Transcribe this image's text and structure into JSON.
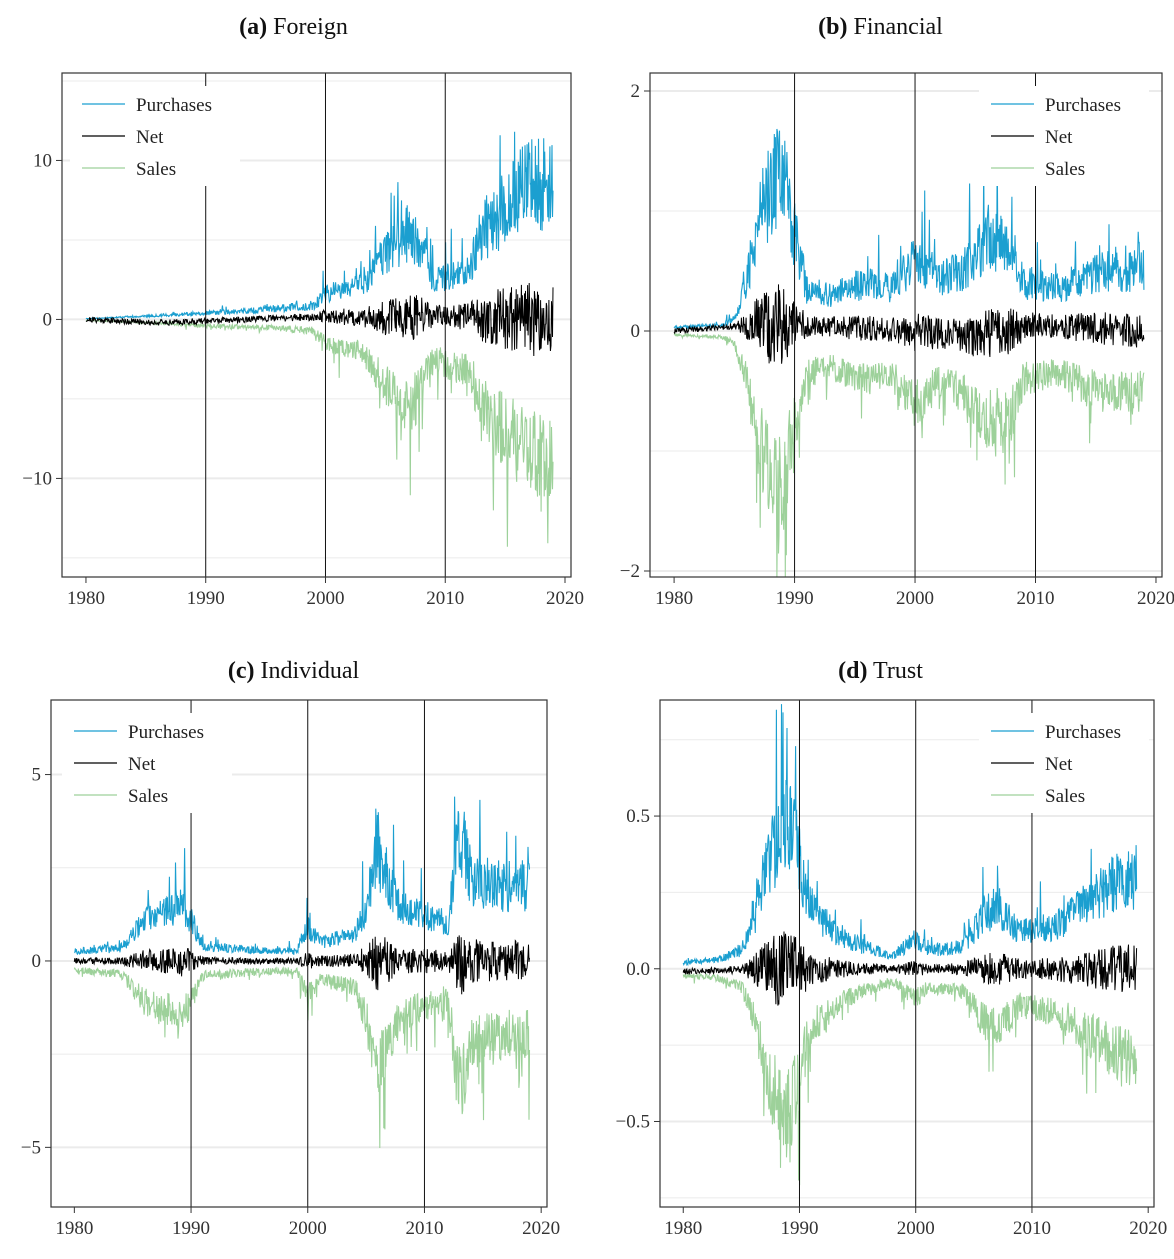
{
  "colors": {
    "purchases": "#1b9fd0",
    "net": "#000000",
    "sales": "#9dd19a",
    "grid": "#ebebeb",
    "frame": "#333333"
  },
  "legend_labels": [
    "Purchases",
    "Net",
    "Sales"
  ],
  "panels": [
    {
      "tag": "(a)",
      "name": "Foreign"
    },
    {
      "tag": "(b)",
      "name": "Financial"
    },
    {
      "tag": "(c)",
      "name": "Individual"
    },
    {
      "tag": "(d)",
      "name": "Trust"
    }
  ],
  "chart_data": [
    {
      "type": "line",
      "title": "(a) Foreign",
      "x_range": [
        1980,
        2019
      ],
      "xlim": [
        1978,
        2020.5
      ],
      "ylim": [
        -16.2,
        15.5
      ],
      "x_ticks": [
        1980,
        1990,
        2000,
        2010,
        2020
      ],
      "y_ticks": [
        -10,
        0,
        10
      ],
      "y_tick_labels": [
        "−10",
        "0",
        "10"
      ],
      "vlines": [
        1990,
        2000,
        2010
      ],
      "legend_position": "top-left",
      "grid": true,
      "series": [
        {
          "name": "Purchases",
          "approx_level": [
            [
              1980,
              0.05
            ],
            [
              1985,
              0.2
            ],
            [
              1990,
              0.4
            ],
            [
              1995,
              0.6
            ],
            [
              1999,
              0.9
            ],
            [
              2000,
              1.6
            ],
            [
              2003,
              2.2
            ],
            [
              2005,
              4.0
            ],
            [
              2007,
              5.5
            ],
            [
              2008,
              4.5
            ],
            [
              2009,
              2.5
            ],
            [
              2011,
              3.0
            ],
            [
              2012,
              3.2
            ],
            [
              2013,
              5.5
            ],
            [
              2015,
              7.0
            ],
            [
              2017,
              8.5
            ],
            [
              2019,
              8.5
            ]
          ]
        },
        {
          "name": "Net",
          "approx_level": [
            [
              1980,
              0
            ],
            [
              1986,
              -0.2
            ],
            [
              1990,
              -0.1
            ],
            [
              2000,
              0.2
            ],
            [
              2005,
              0.1
            ],
            [
              2010,
              0.2
            ],
            [
              2019,
              0.0
            ]
          ]
        },
        {
          "name": "Sales",
          "approx_level": [
            [
              1980,
              -0.05
            ],
            [
              1985,
              -0.2
            ],
            [
              1990,
              -0.4
            ],
            [
              1995,
              -0.5
            ],
            [
              1999,
              -0.7
            ],
            [
              2000,
              -1.5
            ],
            [
              2003,
              -2.0
            ],
            [
              2005,
              -4.0
            ],
            [
              2007,
              -5.5
            ],
            [
              2008,
              -4.5
            ],
            [
              2009,
              -2.5
            ],
            [
              2011,
              -3.0
            ],
            [
              2012,
              -3.2
            ],
            [
              2013,
              -5.5
            ],
            [
              2015,
              -7.0
            ],
            [
              2017,
              -8.5
            ],
            [
              2019,
              -8.5
            ]
          ]
        }
      ]
    },
    {
      "type": "line",
      "title": "(b) Financial",
      "x_range": [
        1980,
        2019
      ],
      "xlim": [
        1978,
        2020.5
      ],
      "ylim": [
        -2.05,
        2.15
      ],
      "x_ticks": [
        1980,
        1990,
        2000,
        2010,
        2020
      ],
      "y_ticks": [
        -2,
        0,
        2
      ],
      "y_tick_labels": [
        "−2",
        "0",
        "2"
      ],
      "vlines": [
        1990,
        2000,
        2010
      ],
      "legend_position": "top-right",
      "grid": true,
      "series": [
        {
          "name": "Purchases",
          "approx_level": [
            [
              1980,
              0.03
            ],
            [
              1984,
              0.05
            ],
            [
              1985,
              0.1
            ],
            [
              1986,
              0.4
            ],
            [
              1987,
              0.9
            ],
            [
              1988,
              1.2
            ],
            [
              1989,
              1.3
            ],
            [
              1990,
              0.8
            ],
            [
              1991,
              0.35
            ],
            [
              1993,
              0.3
            ],
            [
              1996,
              0.4
            ],
            [
              1998,
              0.35
            ],
            [
              2000,
              0.6
            ],
            [
              2002,
              0.45
            ],
            [
              2004,
              0.5
            ],
            [
              2006,
              0.75
            ],
            [
              2008,
              0.7
            ],
            [
              2009,
              0.4
            ],
            [
              2012,
              0.35
            ],
            [
              2014,
              0.45
            ],
            [
              2016,
              0.5
            ],
            [
              2019,
              0.5
            ]
          ]
        },
        {
          "name": "Net",
          "approx_level": [
            [
              1980,
              0
            ],
            [
              1986,
              0.05
            ],
            [
              1990,
              0.05
            ],
            [
              2000,
              0
            ],
            [
              2005,
              -0.05
            ],
            [
              2010,
              0.05
            ],
            [
              2019,
              0
            ]
          ]
        },
        {
          "name": "Sales",
          "approx_level": [
            [
              1980,
              -0.03
            ],
            [
              1984,
              -0.05
            ],
            [
              1985,
              -0.1
            ],
            [
              1986,
              -0.4
            ],
            [
              1987,
              -0.9
            ],
            [
              1988,
              -1.2
            ],
            [
              1989,
              -1.3
            ],
            [
              1990,
              -0.8
            ],
            [
              1991,
              -0.35
            ],
            [
              1993,
              -0.3
            ],
            [
              1996,
              -0.4
            ],
            [
              1998,
              -0.35
            ],
            [
              2000,
              -0.6
            ],
            [
              2002,
              -0.45
            ],
            [
              2004,
              -0.5
            ],
            [
              2006,
              -0.75
            ],
            [
              2008,
              -0.7
            ],
            [
              2009,
              -0.4
            ],
            [
              2012,
              -0.35
            ],
            [
              2014,
              -0.45
            ],
            [
              2016,
              -0.5
            ],
            [
              2019,
              -0.5
            ]
          ]
        }
      ]
    },
    {
      "type": "line",
      "title": "(c) Individual",
      "x_range": [
        1980,
        2019
      ],
      "xlim": [
        1978,
        2020.5
      ],
      "ylim": [
        -6.6,
        7.0
      ],
      "x_ticks": [
        1980,
        1990,
        2000,
        2010,
        2020
      ],
      "y_ticks": [
        -5,
        0,
        5
      ],
      "y_tick_labels": [
        "−5",
        "0",
        "5"
      ],
      "vlines": [
        1990,
        2000,
        2010
      ],
      "legend_position": "top-left",
      "grid": true,
      "series": [
        {
          "name": "Purchases",
          "approx_level": [
            [
              1980,
              0.25
            ],
            [
              1984,
              0.35
            ],
            [
              1986,
              1.1
            ],
            [
              1988,
              1.3
            ],
            [
              1989,
              1.6
            ],
            [
              1990,
              1.1
            ],
            [
              1991,
              0.4
            ],
            [
              1995,
              0.3
            ],
            [
              1999,
              0.25
            ],
            [
              2000,
              0.9
            ],
            [
              2001,
              0.5
            ],
            [
              2004,
              0.7
            ],
            [
              2005,
              1.5
            ],
            [
              2006,
              3.0
            ],
            [
              2007,
              2.0
            ],
            [
              2008,
              1.5
            ],
            [
              2010,
              1.2
            ],
            [
              2012,
              1.0
            ],
            [
              2013,
              3.5
            ],
            [
              2014,
              2.2
            ],
            [
              2016,
              2.0
            ],
            [
              2019,
              2.0
            ]
          ]
        },
        {
          "name": "Net",
          "approx_level": [
            [
              1980,
              0
            ],
            [
              1990,
              0
            ],
            [
              2000,
              0
            ],
            [
              2010,
              0
            ],
            [
              2019,
              0
            ]
          ]
        },
        {
          "name": "Sales",
          "approx_level": [
            [
              1980,
              -0.25
            ],
            [
              1984,
              -0.35
            ],
            [
              1986,
              -1.1
            ],
            [
              1988,
              -1.3
            ],
            [
              1989,
              -1.6
            ],
            [
              1990,
              -1.1
            ],
            [
              1991,
              -0.4
            ],
            [
              1995,
              -0.3
            ],
            [
              1999,
              -0.25
            ],
            [
              2000,
              -0.9
            ],
            [
              2001,
              -0.5
            ],
            [
              2004,
              -0.7
            ],
            [
              2005,
              -1.5
            ],
            [
              2006,
              -3.0
            ],
            [
              2007,
              -2.0
            ],
            [
              2008,
              -1.5
            ],
            [
              2010,
              -1.2
            ],
            [
              2012,
              -1.0
            ],
            [
              2013,
              -3.5
            ],
            [
              2014,
              -2.2
            ],
            [
              2016,
              -2.0
            ],
            [
              2019,
              -2.0
            ]
          ]
        }
      ]
    },
    {
      "type": "line",
      "title": "(d) Trust",
      "x_range": [
        1980,
        2019
      ],
      "xlim": [
        1978,
        2020.5
      ],
      "ylim": [
        -0.78,
        0.88
      ],
      "x_ticks": [
        1980,
        1990,
        2000,
        2010,
        2020
      ],
      "y_ticks": [
        -0.5,
        0,
        0.5
      ],
      "y_tick_labels": [
        "−0.5",
        "0.0",
        "0.5"
      ],
      "vlines": [
        1990,
        2000,
        2010
      ],
      "legend_position": "top-right",
      "grid": true,
      "series": [
        {
          "name": "Purchases",
          "approx_level": [
            [
              1980,
              0.02
            ],
            [
              1983,
              0.03
            ],
            [
              1985,
              0.06
            ],
            [
              1986,
              0.15
            ],
            [
              1987,
              0.3
            ],
            [
              1988,
              0.42
            ],
            [
              1989,
              0.5
            ],
            [
              1990,
              0.35
            ],
            [
              1991,
              0.2
            ],
            [
              1993,
              0.12
            ],
            [
              1995,
              0.08
            ],
            [
              1998,
              0.04
            ],
            [
              2000,
              0.1
            ],
            [
              2001,
              0.06
            ],
            [
              2004,
              0.07
            ],
            [
              2006,
              0.18
            ],
            [
              2007,
              0.2
            ],
            [
              2009,
              0.12
            ],
            [
              2012,
              0.14
            ],
            [
              2015,
              0.22
            ],
            [
              2017,
              0.28
            ],
            [
              2019,
              0.3
            ]
          ]
        },
        {
          "name": "Net",
          "approx_level": [
            [
              1980,
              -0.01
            ],
            [
              1986,
              0
            ],
            [
              1990,
              0
            ],
            [
              2000,
              0
            ],
            [
              2010,
              0
            ],
            [
              2019,
              0
            ]
          ]
        },
        {
          "name": "Sales",
          "approx_level": [
            [
              1980,
              -0.02
            ],
            [
              1983,
              -0.03
            ],
            [
              1985,
              -0.06
            ],
            [
              1986,
              -0.15
            ],
            [
              1987,
              -0.3
            ],
            [
              1988,
              -0.42
            ],
            [
              1989,
              -0.5
            ],
            [
              1990,
              -0.35
            ],
            [
              1991,
              -0.2
            ],
            [
              1993,
              -0.12
            ],
            [
              1995,
              -0.08
            ],
            [
              1998,
              -0.04
            ],
            [
              2000,
              -0.1
            ],
            [
              2001,
              -0.06
            ],
            [
              2004,
              -0.07
            ],
            [
              2006,
              -0.18
            ],
            [
              2007,
              -0.2
            ],
            [
              2009,
              -0.12
            ],
            [
              2012,
              -0.14
            ],
            [
              2015,
              -0.22
            ],
            [
              2017,
              -0.28
            ],
            [
              2019,
              -0.3
            ]
          ]
        }
      ]
    }
  ]
}
